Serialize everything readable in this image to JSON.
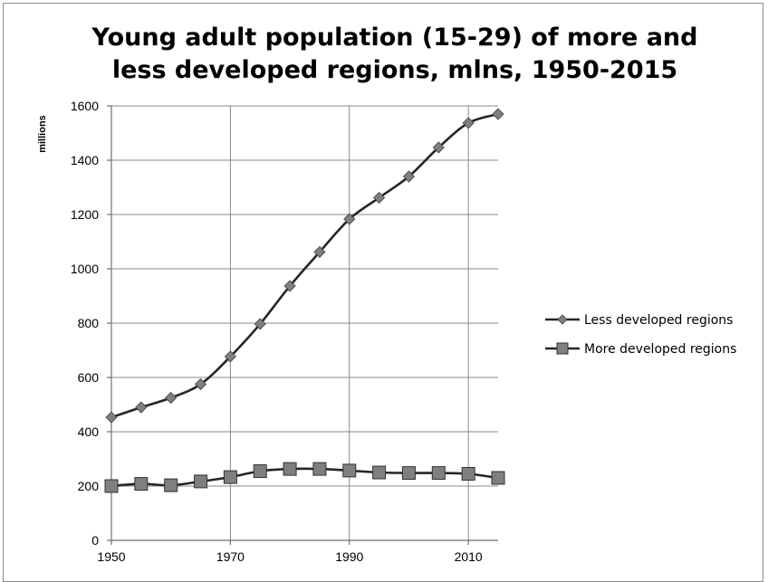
{
  "chart_data": {
    "type": "line",
    "title": "Young adult population (15-29) of more and less developed regions, mlns, 1950-2015",
    "title_lines": [
      "Young adult population (15-29) of more and",
      "less developed regions, mlns, 1950-2015"
    ],
    "xlabel": "",
    "ylabel": "millions",
    "xlim": [
      1950,
      2015
    ],
    "ylim": [
      0,
      1600
    ],
    "x_ticks": [
      1950,
      1970,
      1990,
      2010
    ],
    "y_ticks": [
      0,
      200,
      400,
      600,
      800,
      1000,
      1200,
      1400,
      1600
    ],
    "grid": true,
    "legend_position": "right",
    "x": [
      1950,
      1955,
      1960,
      1965,
      1970,
      1975,
      1980,
      1985,
      1990,
      1995,
      2000,
      2005,
      2010,
      2015
    ],
    "series": [
      {
        "name": "Less developed regions",
        "marker": "diamond",
        "color": "#7f7f7f",
        "line_color": "#262626",
        "values": [
          453,
          490,
          525,
          575,
          677,
          797,
          937,
          1062,
          1183,
          1262,
          1340,
          1447,
          1537,
          1570
        ]
      },
      {
        "name": "More developed regions",
        "marker": "square",
        "color": "#7f7f7f",
        "line_color": "#262626",
        "values": [
          200,
          208,
          203,
          217,
          233,
          255,
          263,
          263,
          257,
          250,
          248,
          248,
          245,
          230
        ]
      }
    ]
  }
}
